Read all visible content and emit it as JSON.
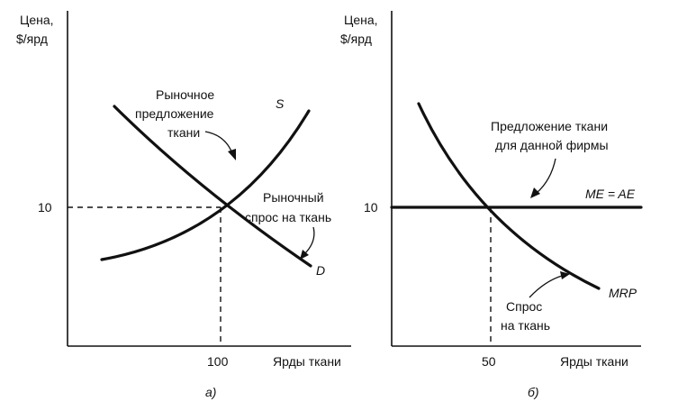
{
  "panel_a": {
    "y_axis_label_line1": "Цена,",
    "y_axis_label_line2": "$/ярд",
    "x_axis_label": "Ярды ткани",
    "y_tick": "10",
    "x_tick": "100",
    "supply_label_line1": "Рыночное",
    "supply_label_line2": "предложение",
    "supply_label_line3": "ткани",
    "supply_curve_label": "S",
    "demand_label_line1": "Рыночный",
    "demand_label_line2": "спрос на ткань",
    "demand_curve_label": "D",
    "caption": "а)"
  },
  "panel_b": {
    "y_axis_label_line1": "Цена,",
    "y_axis_label_line2": "$/ярд",
    "x_axis_label": "Ярды ткани",
    "y_tick": "10",
    "x_tick": "50",
    "supply_label_line1": "Предложение ткани",
    "supply_label_line2": "для данной фирмы",
    "supply_line_label": "ME = AE",
    "demand_label_line1": "Спрос",
    "demand_label_line2": "на ткань",
    "demand_curve_label": "MRP",
    "caption": "б)"
  }
}
